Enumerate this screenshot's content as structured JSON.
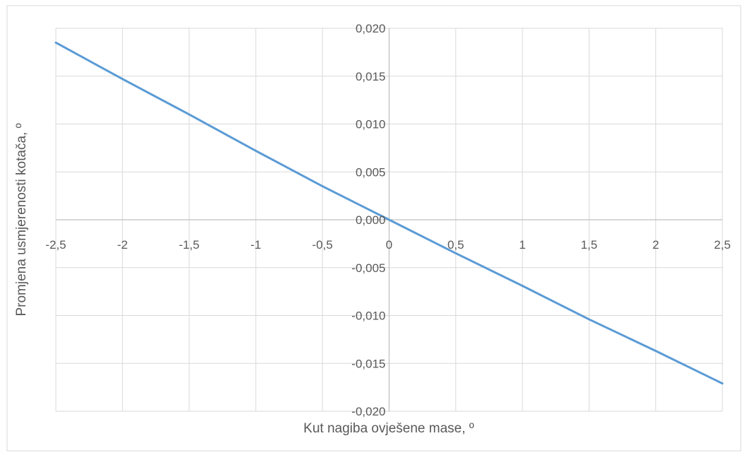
{
  "chart_data": {
    "type": "line",
    "title": "",
    "xlabel": "Kut nagiba ovješene mase, º",
    "ylabel": "Promjena usmjerenosti kotača, º",
    "xlim": [
      -2.5,
      2.5
    ],
    "ylim": [
      -0.02,
      0.02
    ],
    "x_ticks": [
      "-2,5",
      "-2",
      "-1,5",
      "-1",
      "-0,5",
      "0",
      "0,5",
      "1",
      "1,5",
      "2",
      "2,5"
    ],
    "x_tick_values": [
      -2.5,
      -2,
      -1.5,
      -1,
      -0.5,
      0,
      0.5,
      1,
      1.5,
      2,
      2.5
    ],
    "y_ticks": [
      "-0,020",
      "-0,015",
      "-0,010",
      "-0,005",
      "0,000",
      "0,005",
      "0,010",
      "0,015",
      "0,020"
    ],
    "y_tick_values": [
      -0.02,
      -0.015,
      -0.01,
      -0.005,
      0,
      0.005,
      0.01,
      0.015,
      0.02
    ],
    "grid": true,
    "legend": "none",
    "series": [
      {
        "color": "#5b9bd5",
        "x": [
          -2.5,
          -2,
          -1.5,
          -1,
          -0.5,
          0,
          0.5,
          1,
          1.5,
          2,
          2.5
        ],
        "y": [
          0.0185,
          0.0147,
          0.011,
          0.0072,
          0.0035,
          0.0,
          -0.0035,
          -0.0069,
          -0.0104,
          -0.0137,
          -0.0171
        ]
      }
    ],
    "colors": {
      "grid": "#d9d9d9",
      "axis": "#bfbfbf",
      "text": "#595959"
    }
  }
}
